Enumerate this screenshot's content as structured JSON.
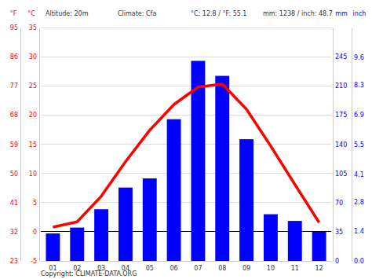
{
  "chart_data": {
    "type": "bar",
    "annotations": [
      "Altitude: 20m",
      "Climate: Cfa",
      "°C: 12.8 / °F: 55.1",
      "mm: 1238 / inch: 48.7"
    ],
    "footer": "Copyright: CLIMATE-DATA.ORG",
    "ylabel": "°C",
    "y2label": "mm",
    "y3label": "°F",
    "y4label": "inch",
    "categories": [
      "01",
      "02",
      "03",
      "04",
      "05",
      "06",
      "07",
      "08",
      "09",
      "10",
      "11",
      "12"
    ],
    "series": [
      {
        "type": "line",
        "color": "#ff0000",
        "values": [
          0.8,
          1.7,
          6.1,
          12.0,
          17.4,
          21.8,
          24.8,
          25.3,
          21.0,
          14.7,
          8.1,
          1.6
        ]
      },
      {
        "type": "bar",
        "axis": "y2",
        "color": "#0000ff",
        "values": [
          33,
          40,
          62,
          88,
          99,
          170,
          240,
          222,
          146,
          56,
          48,
          35
        ]
      }
    ],
    "ylim": [
      -5,
      35
    ],
    "yticks": [
      -5,
      0,
      5,
      10,
      15,
      20,
      25,
      30,
      35
    ],
    "y2lim": [
      0,
      280
    ],
    "y2ticks": [
      0,
      35,
      70,
      105,
      140,
      175,
      210,
      245
    ],
    "y3lim": [
      23,
      95
    ],
    "y3ticks": [
      23,
      32,
      41,
      50,
      59,
      68,
      77,
      86,
      95
    ],
    "y4lim": [
      0,
      11.02
    ],
    "y4ticks": [
      {
        "value": 0,
        "label": "0.0"
      },
      1.4,
      2.8,
      4.1,
      5.5,
      6.9,
      8.3,
      9.6
    ],
    "grid": true
  }
}
